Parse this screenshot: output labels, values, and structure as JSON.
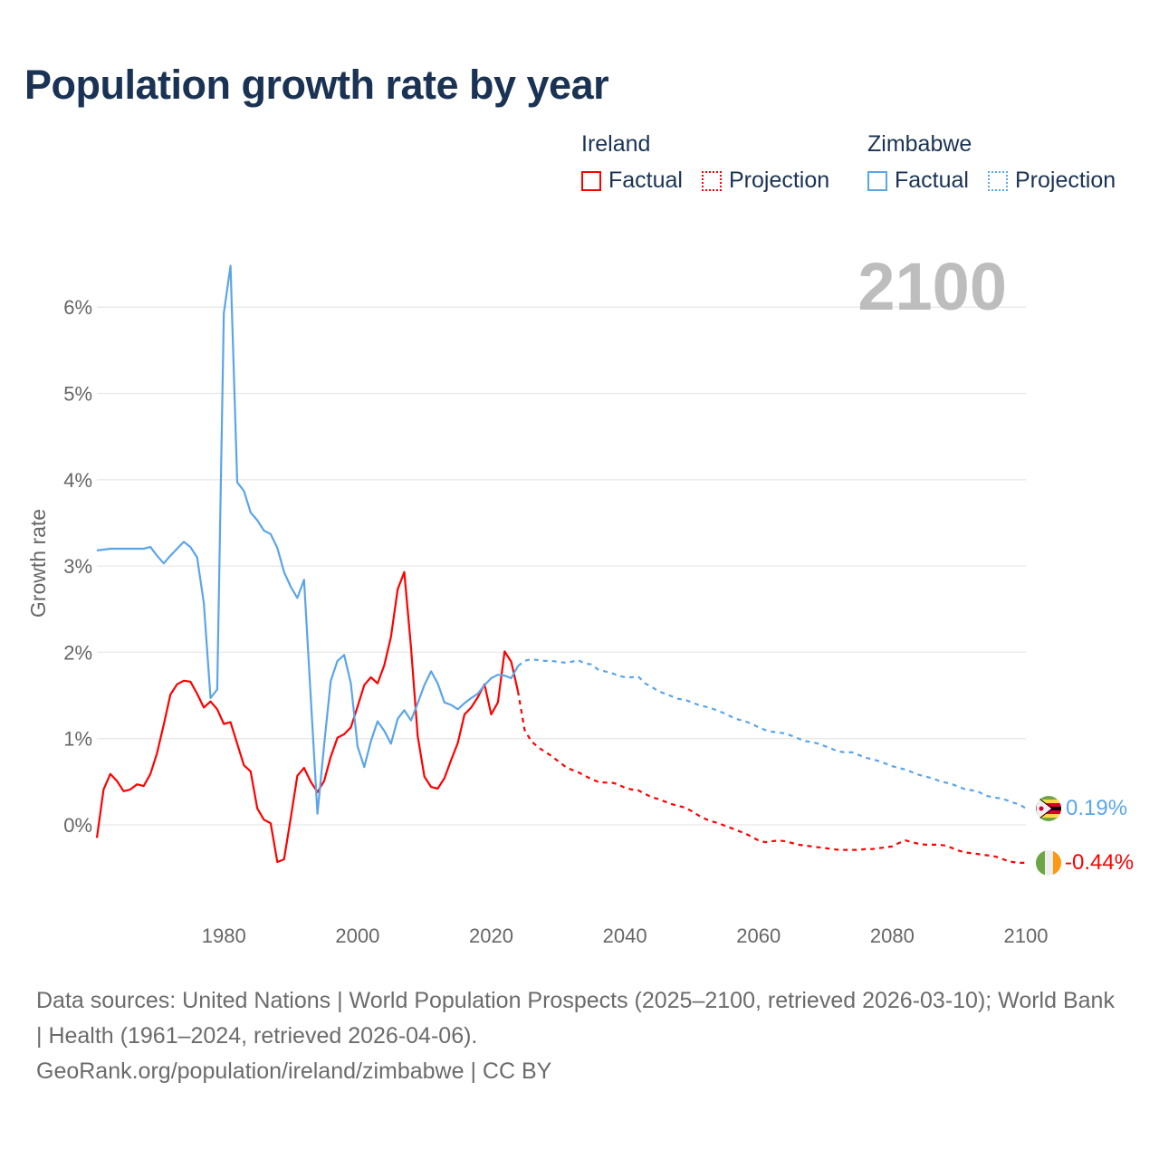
{
  "title": "Population growth rate by year",
  "legend": {
    "groups": [
      {
        "name": "Ireland",
        "factual_label": "Factual",
        "projection_label": "Projection",
        "color": "#ff0000"
      },
      {
        "name": "Zimbabwe",
        "factual_label": "Factual",
        "projection_label": "Projection",
        "color": "#5aa5e8"
      }
    ]
  },
  "current_year_label": "2100",
  "end_labels": {
    "ireland": "-0.44%",
    "zimbabwe": "0.19%"
  },
  "footer": {
    "sources": "Data sources: United Nations | World Population Prospects (2025–2100, retrieved 2026-03-10); World Bank | Health (1961–2024, retrieved 2026-04-06).",
    "credit": "GeoRank.org/population/ireland/zimbabwe | CC BY"
  },
  "chart_data": {
    "type": "line",
    "title": "Population growth rate by year",
    "xlabel": "",
    "ylabel": "Growth rate",
    "xlim": [
      1961,
      2100
    ],
    "ylim": [
      -1,
      6.5
    ],
    "x_ticks": [
      "1980",
      "2000",
      "2020",
      "2040",
      "2060",
      "2080",
      "2100"
    ],
    "y_ticks": [
      "0%",
      "1%",
      "2%",
      "3%",
      "4%",
      "5%",
      "6%"
    ],
    "grid": true,
    "legend_position": "top-right",
    "series": [
      {
        "name": "Ireland Factual",
        "color": "#ff0000",
        "style": "solid",
        "start_year": 1961,
        "values": [
          -0.15,
          0.41,
          0.59,
          0.51,
          0.39,
          0.41,
          0.47,
          0.45,
          0.59,
          0.83,
          1.16,
          1.51,
          1.63,
          1.67,
          1.66,
          1.52,
          1.36,
          1.43,
          1.34,
          1.17,
          1.19,
          0.94,
          0.69,
          0.62,
          0.19,
          0.06,
          0.02,
          -0.43,
          -0.4,
          0.08,
          0.57,
          0.66,
          0.5,
          0.38,
          0.51,
          0.79,
          1.01,
          1.05,
          1.13,
          1.37,
          1.62,
          1.71,
          1.64,
          1.85,
          2.18,
          2.73,
          2.93,
          2.06,
          1.03,
          0.56,
          0.44,
          0.42,
          0.54,
          0.75,
          0.95,
          1.28,
          1.36,
          1.48,
          1.63,
          1.28,
          1.42,
          2.01,
          1.89,
          1.55
        ]
      },
      {
        "name": "Ireland Projection",
        "color": "#ff0000",
        "style": "dotted",
        "start_year": 2024,
        "values": [
          1.55,
          1.1,
          0.97,
          0.9,
          0.85,
          0.8,
          0.74,
          0.68,
          0.64,
          0.61,
          0.57,
          0.53,
          0.5,
          0.49,
          0.49,
          0.47,
          0.43,
          0.41,
          0.4,
          0.36,
          0.32,
          0.3,
          0.27,
          0.24,
          0.22,
          0.2,
          0.16,
          0.11,
          0.07,
          0.04,
          0.02,
          -0.01,
          -0.04,
          -0.07,
          -0.1,
          -0.14,
          -0.18,
          -0.2,
          -0.19,
          -0.18,
          -0.19,
          -0.21,
          -0.23,
          -0.24,
          -0.25,
          -0.26,
          -0.27,
          -0.28,
          -0.29,
          -0.29,
          -0.29,
          -0.29,
          -0.28,
          -0.28,
          -0.27,
          -0.26,
          -0.25,
          -0.21,
          -0.18,
          -0.2,
          -0.22,
          -0.23,
          -0.23,
          -0.23,
          -0.24,
          -0.27,
          -0.3,
          -0.32,
          -0.33,
          -0.34,
          -0.35,
          -0.36,
          -0.38,
          -0.41,
          -0.43,
          -0.44,
          -0.44
        ]
      },
      {
        "name": "Zimbabwe Factual",
        "color": "#5aa5e8",
        "style": "solid",
        "start_year": 1961,
        "values": [
          3.18,
          3.19,
          3.2,
          3.2,
          3.2,
          3.2,
          3.2,
          3.2,
          3.22,
          3.12,
          3.03,
          3.12,
          3.2,
          3.28,
          3.22,
          3.1,
          2.57,
          1.47,
          1.57,
          5.93,
          6.48,
          3.97,
          3.87,
          3.62,
          3.53,
          3.41,
          3.37,
          3.21,
          2.93,
          2.76,
          2.63,
          2.84,
          1.48,
          0.13,
          0.93,
          1.67,
          1.9,
          1.97,
          1.64,
          0.91,
          0.67,
          0.97,
          1.2,
          1.09,
          0.94,
          1.23,
          1.33,
          1.21,
          1.41,
          1.62,
          1.78,
          1.64,
          1.42,
          1.39,
          1.34,
          1.41,
          1.47,
          1.52,
          1.62,
          1.7,
          1.74,
          1.73,
          1.7,
          1.84
        ]
      },
      {
        "name": "Zimbabwe Projection",
        "color": "#5aa5e8",
        "style": "dotted",
        "start_year": 2024,
        "values": [
          1.84,
          1.9,
          1.92,
          1.91,
          1.9,
          1.9,
          1.89,
          1.88,
          1.89,
          1.91,
          1.87,
          1.86,
          1.8,
          1.78,
          1.76,
          1.73,
          1.71,
          1.71,
          1.72,
          1.64,
          1.6,
          1.55,
          1.52,
          1.49,
          1.46,
          1.45,
          1.42,
          1.39,
          1.37,
          1.35,
          1.32,
          1.29,
          1.25,
          1.22,
          1.2,
          1.17,
          1.13,
          1.1,
          1.08,
          1.07,
          1.06,
          1.03,
          1.0,
          0.97,
          0.96,
          0.94,
          0.91,
          0.88,
          0.85,
          0.84,
          0.84,
          0.81,
          0.78,
          0.76,
          0.74,
          0.71,
          0.68,
          0.66,
          0.64,
          0.61,
          0.58,
          0.56,
          0.54,
          0.51,
          0.49,
          0.47,
          0.44,
          0.41,
          0.4,
          0.38,
          0.34,
          0.32,
          0.31,
          0.29,
          0.26,
          0.24,
          0.19
        ]
      }
    ]
  }
}
